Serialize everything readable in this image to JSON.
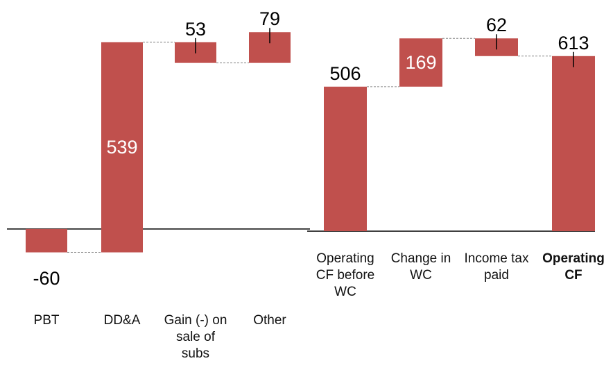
{
  "chart_data": [
    {
      "type": "waterfall",
      "categories": [
        "PBT",
        "DD&A",
        "Gain (-) on sale of subs",
        "Other"
      ],
      "values": [
        -60,
        539,
        -53,
        79
      ],
      "value_labels": [
        "-60",
        "539",
        "53",
        "79"
      ],
      "measure": [
        "relative",
        "relative",
        "relative",
        "relative"
      ],
      "color": "#c0504d",
      "ylim": [
        -100,
        550
      ]
    },
    {
      "type": "waterfall",
      "categories": [
        "Operating CF before WC",
        "Change in WC",
        "Income tax paid",
        "Operating CF"
      ],
      "values": [
        506,
        169,
        -62,
        613
      ],
      "value_labels": [
        "506",
        "169",
        "62",
        "613"
      ],
      "measure": [
        "absolute",
        "relative",
        "relative",
        "total"
      ],
      "color": "#c0504d",
      "ylim": [
        0,
        700
      ]
    }
  ]
}
